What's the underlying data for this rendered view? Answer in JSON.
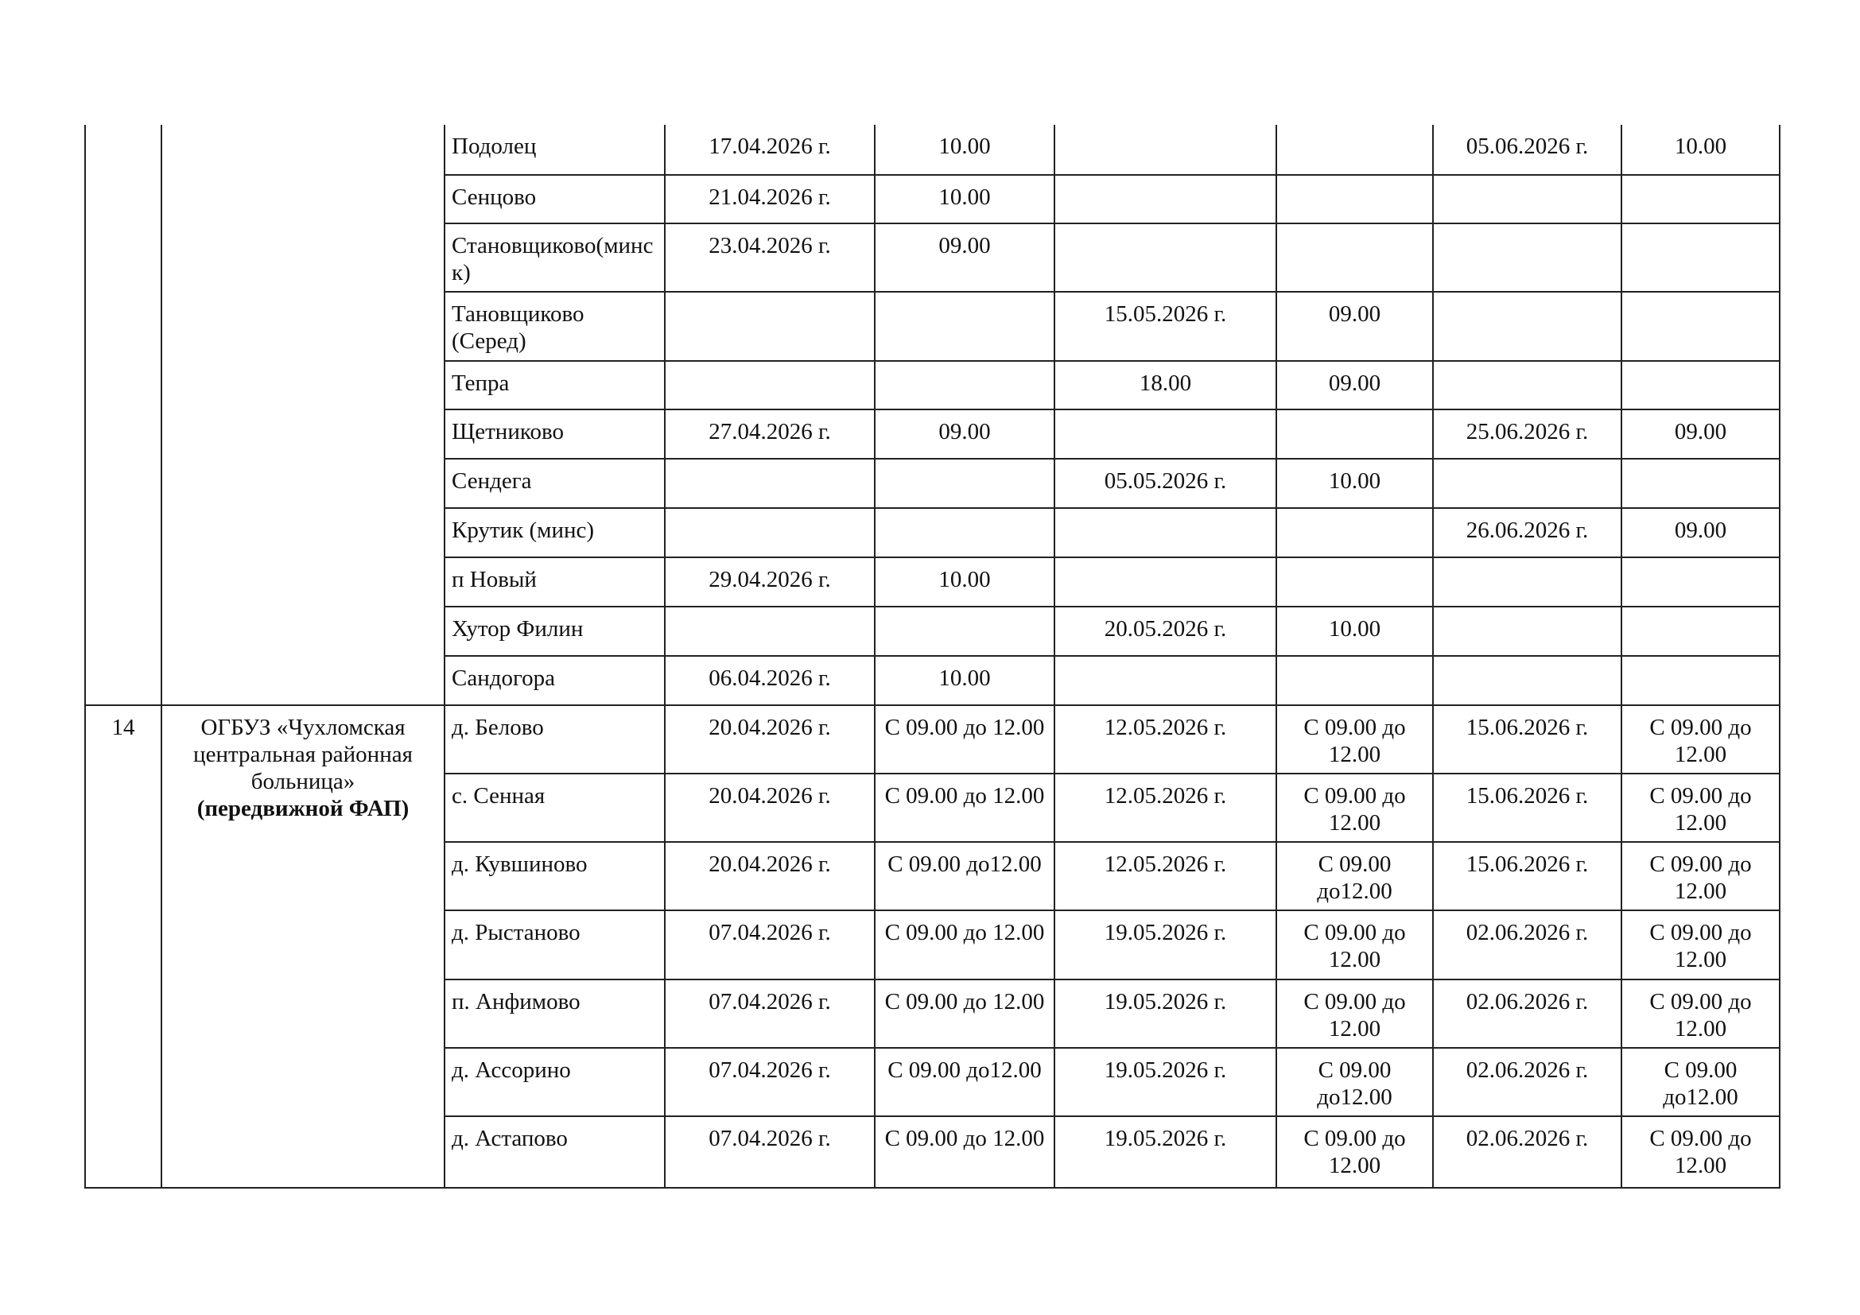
{
  "group_a": {
    "rows": [
      [
        "Подолец",
        "17.04.2026 г.",
        "10.00",
        "",
        "",
        "05.06.2026 г.",
        "10.00"
      ],
      [
        "Сенцово",
        "21.04.2026 г.",
        "10.00",
        "",
        "",
        "",
        ""
      ],
      [
        "Становщиково(минск)",
        "23.04.2026 г.",
        "09.00",
        "",
        "",
        "",
        ""
      ],
      [
        "Тановщиково (Серед)",
        "",
        "",
        "15.05.2026 г.",
        "09.00",
        "",
        ""
      ],
      [
        "Тепра",
        "",
        "",
        "18.00",
        "09.00",
        "",
        ""
      ],
      [
        "Щетниково",
        "27.04.2026 г.",
        "09.00",
        "",
        "",
        "25.06.2026 г.",
        "09.00"
      ],
      [
        "Сендега",
        "",
        "",
        "05.05.2026 г.",
        "10.00",
        "",
        ""
      ],
      [
        "Крутик (минс)",
        "",
        "",
        "",
        "",
        "26.06.2026 г.",
        "09.00"
      ],
      [
        "п Новый",
        "29.04.2026 г.",
        "10.00",
        "",
        "",
        "",
        ""
      ],
      [
        "Хутор Филин",
        "",
        "",
        "20.05.2026 г.",
        "10.00",
        "",
        ""
      ],
      [
        "Сандогора",
        "06.04.2026 г.",
        "10.00",
        "",
        "",
        "",
        ""
      ]
    ]
  },
  "group_b": {
    "number": "14",
    "org": "ОГБУЗ «Чухломская центральная районная больница»",
    "org_note": "(передвижной ФАП)",
    "rows": [
      [
        "д. Белово",
        "20.04.2026 г.",
        "С 09.00 до 12.00",
        "12.05.2026 г.",
        "С 09.00 до 12.00",
        "15.06.2026 г.",
        "С 09.00 до 12.00"
      ],
      [
        "с. Сенная",
        "20.04.2026 г.",
        "С 09.00 до 12.00",
        "12.05.2026 г.",
        "С 09.00 до 12.00",
        "15.06.2026 г.",
        "С 09.00 до 12.00"
      ],
      [
        "д. Кувшиново",
        "20.04.2026 г.",
        "С 09.00 до12.00",
        "12.05.2026 г.",
        "С 09.00 до12.00",
        "15.06.2026 г.",
        "С 09.00 до 12.00"
      ],
      [
        "д. Рыстаново",
        "07.04.2026 г.",
        "С 09.00 до 12.00",
        "19.05.2026 г.",
        "С 09.00 до 12.00",
        "02.06.2026 г.",
        "С 09.00 до 12.00"
      ],
      [
        "п. Анфимово",
        "07.04.2026 г.",
        "С 09.00 до 12.00",
        "19.05.2026 г.",
        "С 09.00 до 12.00",
        "02.06.2026 г.",
        "С 09.00 до 12.00"
      ],
      [
        "д. Ассорино",
        "07.04.2026 г.",
        "С 09.00 до12.00",
        "19.05.2026 г.",
        "С 09.00 до12.00",
        "02.06.2026 г.",
        "С 09.00 до12.00"
      ],
      [
        " д. Астапово",
        "07.04.2026 г.",
        "С 09.00 до 12.00",
        "19.05.2026 г.",
        "С 09.00 до 12.00",
        "02.06.2026 г.",
        "С 09.00 до 12.00"
      ]
    ]
  }
}
